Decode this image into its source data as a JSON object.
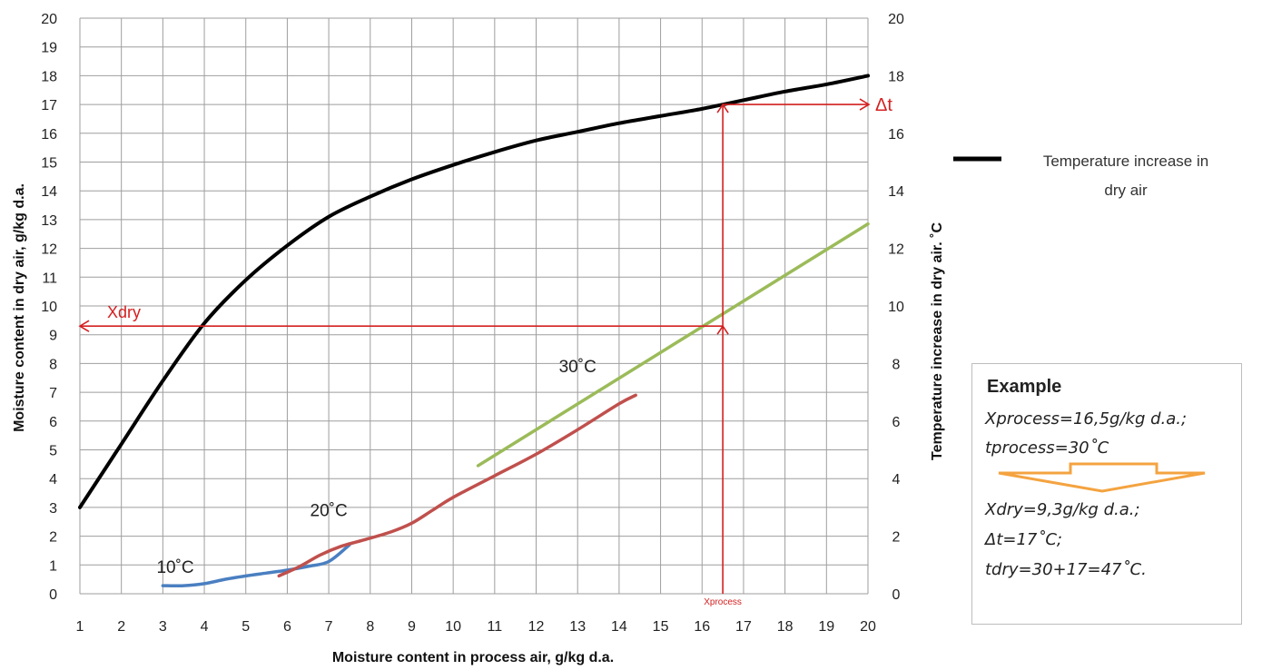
{
  "chart_data": {
    "type": "line",
    "xlabel": "Moisture content in process air, g/kg d.a.",
    "ylabel": "Moisture content in dry air, g/kg d.a.",
    "y2label": "Temperature increase in dry air. ˚C",
    "xlim": [
      1,
      20
    ],
    "ylim": [
      0,
      20
    ],
    "y2lim": [
      0,
      20
    ],
    "grid": true,
    "x_ticks": [
      "1",
      "2",
      "3",
      "4",
      "5",
      "6",
      "7",
      "8",
      "9",
      "10",
      "11",
      "12",
      "13",
      "14",
      "15",
      "16",
      "17",
      "18",
      "19",
      "20"
    ],
    "y_ticks": [
      "0",
      "1",
      "2",
      "3",
      "4",
      "5",
      "6",
      "7",
      "8",
      "9",
      "10",
      "11",
      "12",
      "13",
      "14",
      "15",
      "16",
      "17",
      "18",
      "19",
      "20"
    ],
    "y2_ticks": [
      "0",
      "2",
      "4",
      "6",
      "8",
      "10",
      "12",
      "14",
      "16",
      "18",
      "20"
    ],
    "legend_position": "right",
    "series": [
      {
        "name": "Temperature increase in dry air",
        "axis": "right",
        "color": "#000000",
        "points": [
          [
            1,
            3
          ],
          [
            2,
            5.2
          ],
          [
            3,
            7.4
          ],
          [
            4,
            9.4
          ],
          [
            5,
            10.9
          ],
          [
            6,
            12.1
          ],
          [
            7,
            13.1
          ],
          [
            8,
            13.8
          ],
          [
            9,
            14.4
          ],
          [
            10,
            14.9
          ],
          [
            11,
            15.35
          ],
          [
            12,
            15.75
          ],
          [
            13,
            16.05
          ],
          [
            14,
            16.35
          ],
          [
            15,
            16.6
          ],
          [
            16,
            16.85
          ],
          [
            17,
            17.15
          ],
          [
            18,
            17.45
          ],
          [
            19,
            17.7
          ],
          [
            20,
            18
          ]
        ]
      },
      {
        "label": "10˚C",
        "color": "#4a7fc1",
        "points": [
          [
            3,
            0.28
          ],
          [
            3.5,
            0.28
          ],
          [
            4,
            0.35
          ],
          [
            4.5,
            0.5
          ],
          [
            5,
            0.62
          ],
          [
            5.5,
            0.72
          ],
          [
            6,
            0.82
          ],
          [
            6.5,
            0.95
          ],
          [
            7,
            1.12
          ],
          [
            7.5,
            1.7
          ]
        ]
      },
      {
        "label": "20˚C",
        "color": "#c0504d",
        "points": [
          [
            5.8,
            0.62
          ],
          [
            6.3,
            0.95
          ],
          [
            6.8,
            1.35
          ],
          [
            7.3,
            1.65
          ],
          [
            7.8,
            1.85
          ],
          [
            8.5,
            2.15
          ],
          [
            9,
            2.45
          ],
          [
            9.5,
            2.9
          ],
          [
            10,
            3.35
          ],
          [
            11,
            4.1
          ],
          [
            12,
            4.85
          ],
          [
            13,
            5.7
          ],
          [
            14,
            6.6
          ],
          [
            14.4,
            6.9
          ]
        ]
      },
      {
        "label": "30˚C",
        "color": "#9bbb59",
        "points": [
          [
            10.6,
            4.45
          ],
          [
            20,
            12.85
          ]
        ]
      }
    ],
    "annotations": {
      "xdry_label": "Xdry",
      "xdry_value": 9.3,
      "xprocess_label": "Xprocess",
      "xprocess_value": 16.5,
      "delta_t_label": "Δt",
      "delta_t_value": 17
    }
  },
  "legend": {
    "line1": "Temperature increase in",
    "line2": "dry air"
  },
  "example": {
    "title": "Example",
    "line1": "Xprocess=16,5g/kg d.a.;",
    "line2": "tprocess=30˚C",
    "line3": "Xdry=9,3g/kg d.a.;",
    "line4": "Δt=17˚C;",
    "line5": "tdry=30+17=47˚C.",
    "arrow_color": "#f4a340"
  }
}
